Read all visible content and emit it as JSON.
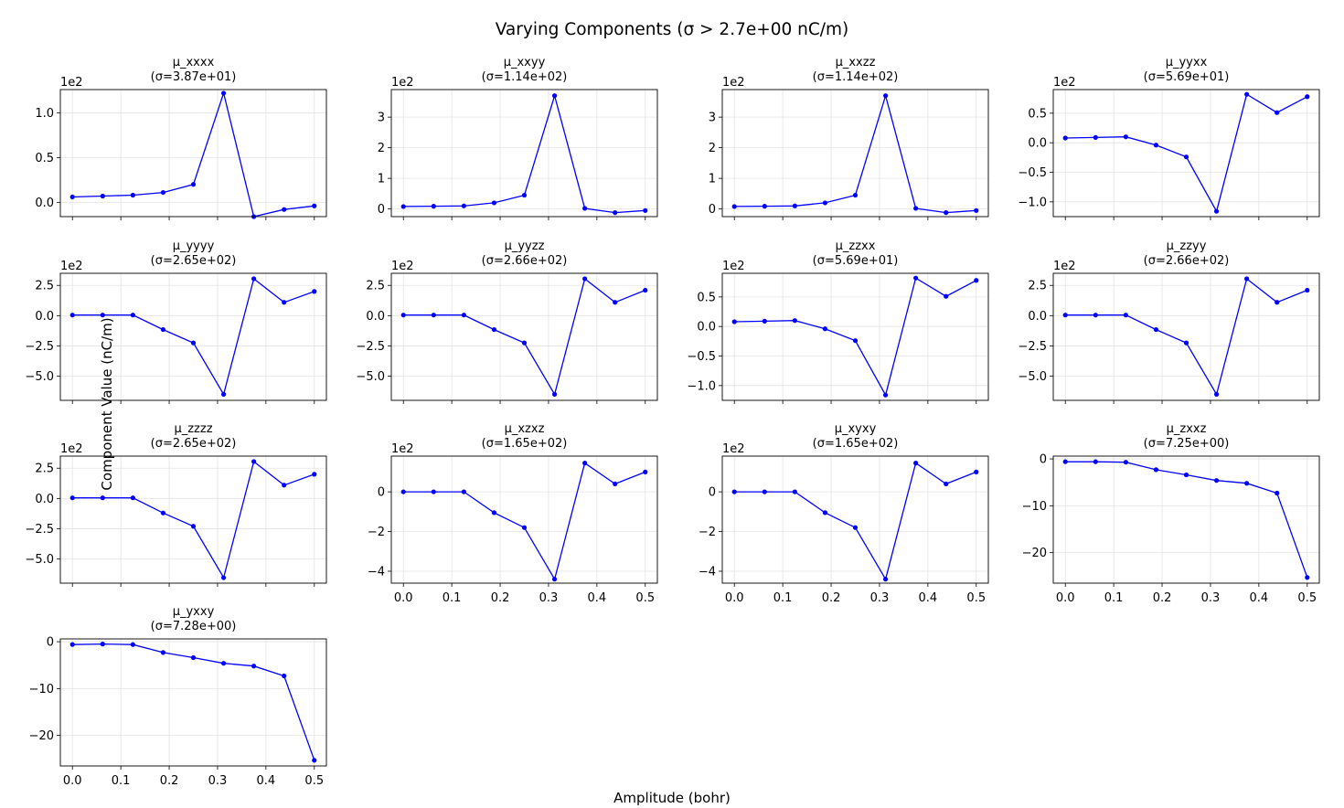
{
  "figure": {
    "suptitle": "Varying Components (σ > 2.7e+00 nC/m)",
    "xlabel": "Amplitude (bohr)",
    "ylabel": "Component Value (nC/m)"
  },
  "style": {
    "line_color": "#0000ff",
    "grid_color": "#e3e3e3",
    "axis_color": "#000000"
  },
  "chart_data": {
    "type": "line",
    "x": [
      0.0,
      0.0625,
      0.125,
      0.1875,
      0.25,
      0.3125,
      0.375,
      0.4375,
      0.5
    ],
    "xticks": [
      0.0,
      0.1,
      0.2,
      0.3,
      0.4,
      0.5
    ],
    "xlim": [
      -0.025,
      0.525
    ],
    "subplots": [
      {
        "title": "μ_xxxx",
        "sigma": "(σ=3.87e+01)",
        "offset": "1e2",
        "ylim": [
          -0.16,
          1.26
        ],
        "yticks": [
          0.0,
          0.5,
          1.0
        ],
        "yticklabels": [
          "0.0",
          "0.5",
          "1.0"
        ],
        "values": [
          0.06,
          0.07,
          0.08,
          0.11,
          0.2,
          1.22,
          -0.16,
          -0.08,
          -0.04
        ]
      },
      {
        "title": "μ_xxyy",
        "sigma": "(σ=1.14e+02)",
        "offset": "1e2",
        "ylim": [
          -0.25,
          3.9
        ],
        "yticks": [
          0,
          1,
          2,
          3
        ],
        "yticklabels": [
          "0",
          "1",
          "2",
          "3"
        ],
        "values": [
          0.08,
          0.09,
          0.1,
          0.2,
          0.45,
          3.7,
          0.02,
          -0.12,
          -0.05
        ]
      },
      {
        "title": "μ_xxzz",
        "sigma": "(σ=1.14e+02)",
        "offset": "1e2",
        "ylim": [
          -0.25,
          3.9
        ],
        "yticks": [
          0,
          1,
          2,
          3
        ],
        "yticklabels": [
          "0",
          "1",
          "2",
          "3"
        ],
        "values": [
          0.08,
          0.09,
          0.1,
          0.2,
          0.45,
          3.7,
          0.02,
          -0.12,
          -0.05
        ]
      },
      {
        "title": "μ_yyxx",
        "sigma": "(σ=5.69e+01)",
        "offset": "1e2",
        "ylim": [
          -1.25,
          0.9
        ],
        "yticks": [
          -1.0,
          -0.5,
          0.0,
          0.5
        ],
        "yticklabels": [
          "−1.0",
          "−0.5",
          "0.0",
          "0.5"
        ],
        "values": [
          0.08,
          0.09,
          0.1,
          -0.04,
          -0.24,
          -1.16,
          0.82,
          0.51,
          0.78
        ]
      },
      {
        "title": "μ_yyyy",
        "sigma": "(σ=2.65e+02)",
        "offset": "1e2",
        "ylim": [
          -7.0,
          3.5
        ],
        "yticks": [
          -5.0,
          -2.5,
          0.0,
          2.5
        ],
        "yticklabels": [
          "−5.0",
          "−2.5",
          "0.0",
          "2.5"
        ],
        "values": [
          0.05,
          0.05,
          0.05,
          -1.15,
          -2.25,
          -6.5,
          3.05,
          1.1,
          2.0
        ]
      },
      {
        "title": "μ_yyzz",
        "sigma": "(σ=2.66e+02)",
        "offset": "1e2",
        "ylim": [
          -7.0,
          3.5
        ],
        "yticks": [
          -5.0,
          -2.5,
          0.0,
          2.5
        ],
        "yticklabels": [
          "−5.0",
          "−2.5",
          "0.0",
          "2.5"
        ],
        "values": [
          0.05,
          0.05,
          0.05,
          -1.15,
          -2.25,
          -6.5,
          3.05,
          1.1,
          2.1
        ]
      },
      {
        "title": "μ_zzxx",
        "sigma": "(σ=5.69e+01)",
        "offset": "1e2",
        "ylim": [
          -1.25,
          0.9
        ],
        "yticks": [
          -1.0,
          -0.5,
          0.0,
          0.5
        ],
        "yticklabels": [
          "−1.0",
          "−0.5",
          "0.0",
          "0.5"
        ],
        "values": [
          0.08,
          0.09,
          0.1,
          -0.04,
          -0.24,
          -1.16,
          0.82,
          0.51,
          0.78
        ]
      },
      {
        "title": "μ_zzyy",
        "sigma": "(σ=2.66e+02)",
        "offset": "1e2",
        "ylim": [
          -7.0,
          3.5
        ],
        "yticks": [
          -5.0,
          -2.5,
          0.0,
          2.5
        ],
        "yticklabels": [
          "−5.0",
          "−2.5",
          "0.0",
          "2.5"
        ],
        "values": [
          0.05,
          0.05,
          0.05,
          -1.15,
          -2.25,
          -6.5,
          3.05,
          1.1,
          2.1
        ]
      },
      {
        "title": "μ_zzzz",
        "sigma": "(σ=2.65e+02)",
        "offset": "1e2",
        "ylim": [
          -7.0,
          3.5
        ],
        "yticks": [
          -5.0,
          -2.5,
          0.0,
          2.5
        ],
        "yticklabels": [
          "−5.0",
          "−2.5",
          "0.0",
          "2.5"
        ],
        "values": [
          0.05,
          0.05,
          0.05,
          -1.2,
          -2.3,
          -6.55,
          3.05,
          1.1,
          2.0
        ]
      },
      {
        "title": "μ_xzxz",
        "sigma": "(σ=1.65e+02)",
        "offset": "1e2",
        "ylim": [
          -4.6,
          1.8
        ],
        "yticks": [
          -4,
          -2,
          0
        ],
        "yticklabels": [
          "−4",
          "−2",
          "0"
        ],
        "values": [
          0.0,
          0.0,
          0.0,
          -1.05,
          -1.8,
          -4.4,
          1.45,
          0.4,
          1.0
        ]
      },
      {
        "title": "μ_xyxy",
        "sigma": "(σ=1.65e+02)",
        "offset": "1e2",
        "ylim": [
          -4.6,
          1.8
        ],
        "yticks": [
          -4,
          -2,
          0
        ],
        "yticklabels": [
          "−4",
          "−2",
          "0"
        ],
        "values": [
          0.0,
          0.0,
          0.0,
          -1.05,
          -1.8,
          -4.4,
          1.45,
          0.4,
          1.0
        ]
      },
      {
        "title": "μ_zxxz",
        "sigma": "(σ=7.25e+00)",
        "offset": "",
        "ylim": [
          -26.5,
          0.6
        ],
        "yticks": [
          -20,
          -10,
          0
        ],
        "yticklabels": [
          "−20",
          "−10",
          "0"
        ],
        "values": [
          -0.6,
          -0.6,
          -0.7,
          -2.3,
          -3.4,
          -4.6,
          -5.2,
          -7.3,
          -25.3
        ]
      },
      {
        "title": "μ_yxxy",
        "sigma": "(σ=7.28e+00)",
        "offset": "",
        "ylim": [
          -26.5,
          0.6
        ],
        "yticks": [
          -20,
          -10,
          0
        ],
        "yticklabels": [
          "−20",
          "−10",
          "0"
        ],
        "values": [
          -0.6,
          -0.5,
          -0.6,
          -2.3,
          -3.4,
          -4.6,
          -5.2,
          -7.3,
          -25.3
        ]
      }
    ]
  }
}
